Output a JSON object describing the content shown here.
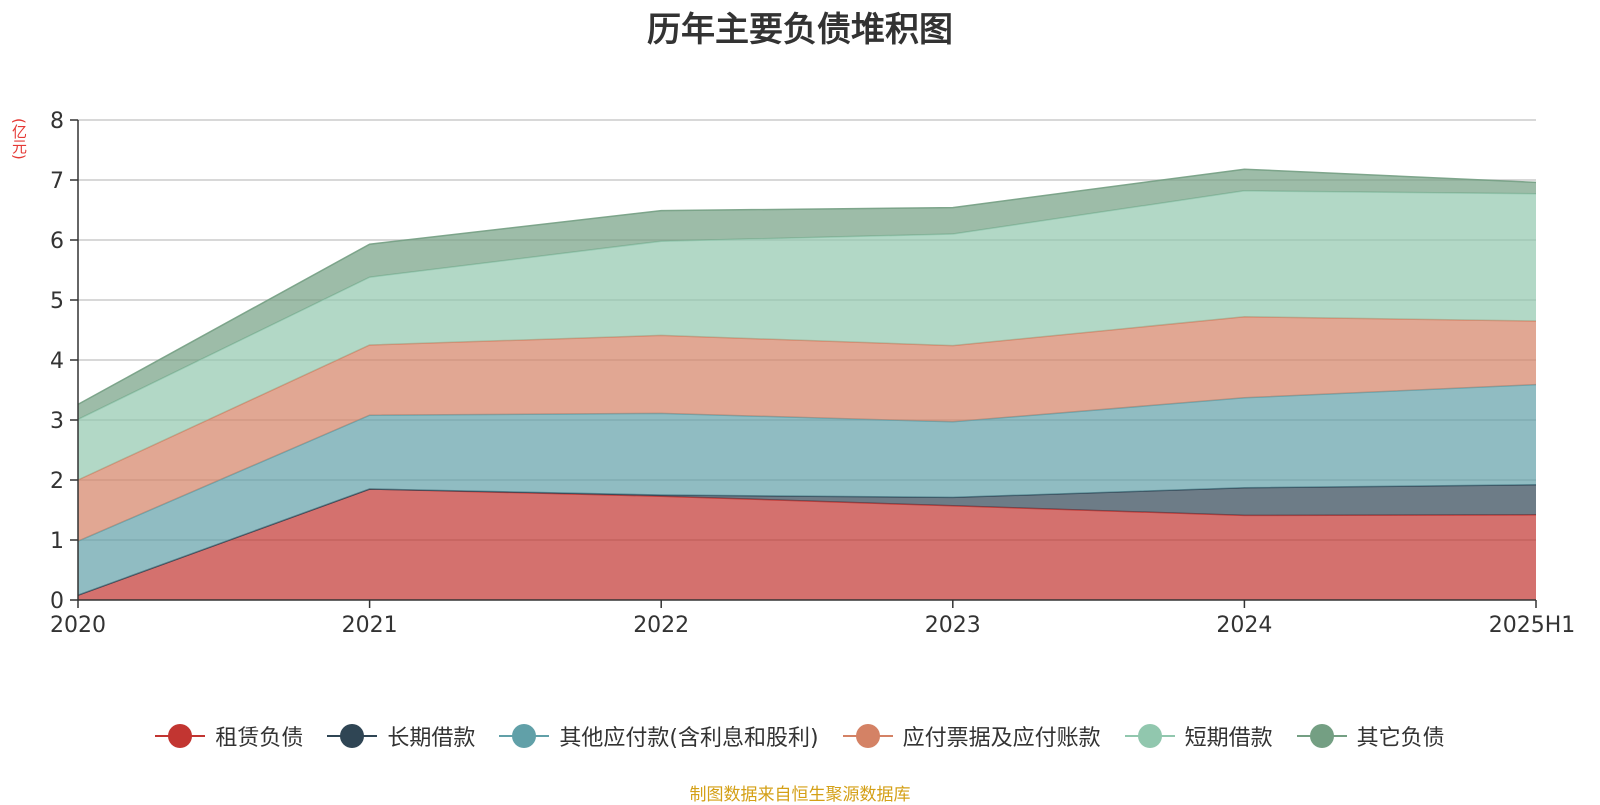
{
  "chart_data": {
    "type": "area",
    "stacked": true,
    "title": "历年主要负债堆积图",
    "unit_label": "(亿元)",
    "categories": [
      "2020",
      "2021",
      "2022",
      "2023",
      "2024",
      "2025H1"
    ],
    "ylim": [
      0,
      8
    ],
    "yticks": [
      0,
      1,
      2,
      3,
      4,
      5,
      6,
      7,
      8
    ],
    "grid": true,
    "legend_position": "bottom",
    "series": [
      {
        "name": "租赁负债",
        "color": "#c23531",
        "values": [
          0.08,
          1.85,
          1.73,
          1.57,
          1.41,
          1.42
        ]
      },
      {
        "name": "长期借款",
        "color": "#2f4554",
        "values": [
          0.0,
          0.0,
          0.02,
          0.14,
          0.46,
          0.5
        ]
      },
      {
        "name": "其他应付款(含利息和股利)",
        "color": "#61a0a8",
        "values": [
          0.9,
          1.23,
          1.36,
          1.26,
          1.5,
          1.67
        ]
      },
      {
        "name": "应付票据及应付账款",
        "color": "#d48265",
        "values": [
          1.02,
          1.17,
          1.3,
          1.27,
          1.35,
          1.06
        ]
      },
      {
        "name": "短期借款",
        "color": "#91c7ae",
        "values": [
          1.01,
          1.13,
          1.57,
          1.86,
          2.1,
          2.12
        ]
      },
      {
        "name": "其它负债",
        "color": "#749f83",
        "values": [
          0.25,
          0.55,
          0.51,
          0.44,
          0.36,
          0.19
        ]
      }
    ]
  },
  "source_note": "制图数据来自恒生聚源数据库"
}
